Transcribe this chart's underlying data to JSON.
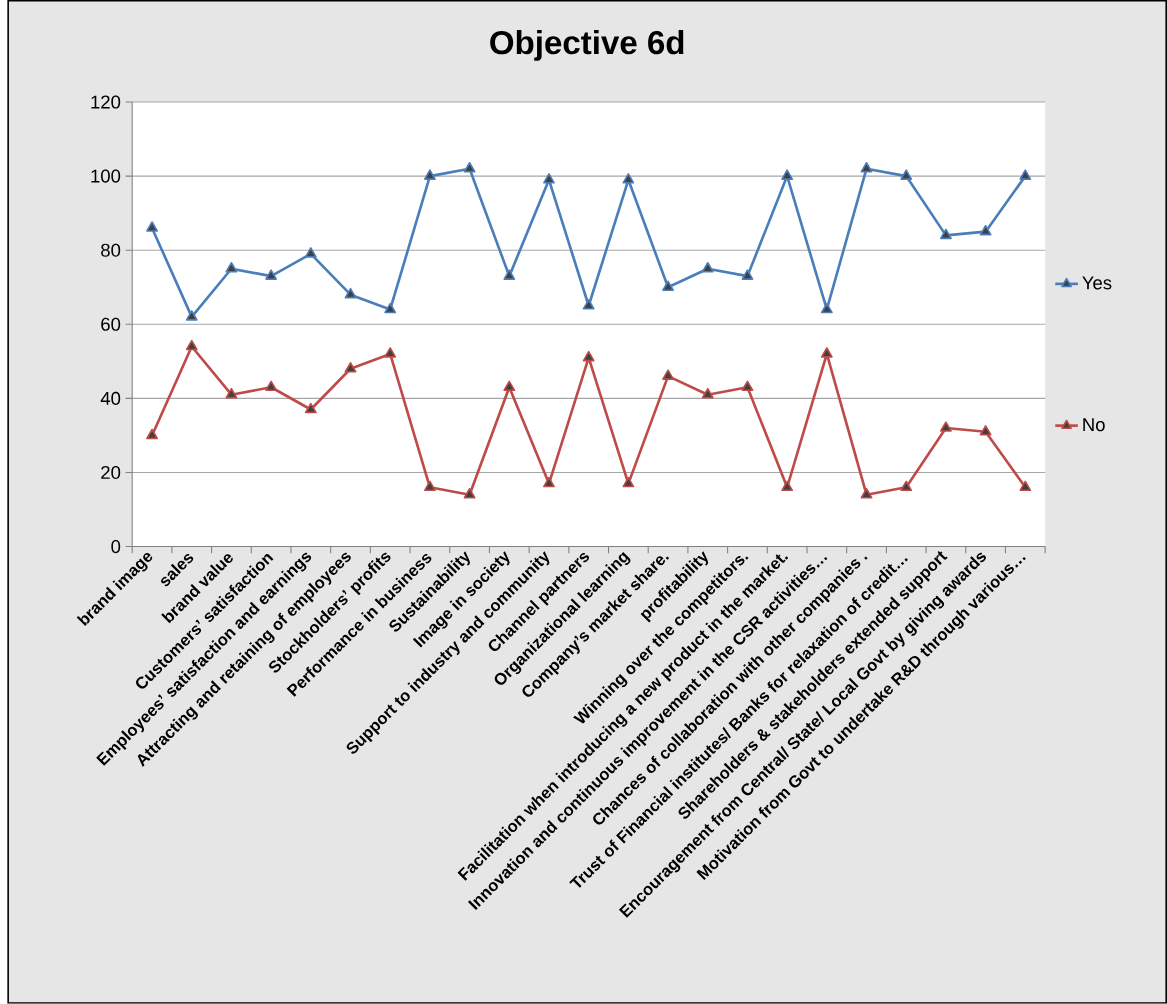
{
  "chart_data": {
    "type": "line",
    "title": "Objective 6d",
    "categories": [
      "brand image",
      "sales",
      "brand value",
      "Customers’ satisfaction",
      "Employees’ satisfaction and earnings",
      "Attracting and retaining of employees",
      "Stockholders’ profits",
      "Performance in business",
      "Sustainability",
      "Image in society",
      "Support to industry and community",
      "Channel partners",
      "Organizational learning",
      "Company’s market share.",
      "profitability",
      "Winning over the competitors.",
      "Facilitation when introducing a new product in the market.",
      "Innovation and continuous improvement in the CSR activities…",
      "Chances of collaboration with other companies .",
      "Trust of Financial institutes/ Banks for relaxation of   credit…",
      "Shareholders & stakeholders extended support",
      "Encouragement from Central/ State/ Local Govt by giving awards",
      "Motivation from Govt to undertake R&D through various…"
    ],
    "series": [
      {
        "name": "Yes",
        "color": "#4a7ebb",
        "values": [
          86,
          62,
          75,
          73,
          79,
          68,
          64,
          100,
          102,
          73,
          99,
          65,
          99,
          70,
          75,
          73,
          100,
          64,
          102,
          100,
          84,
          85,
          100
        ]
      },
      {
        "name": "No",
        "color": "#be4b48",
        "values": [
          30,
          54,
          41,
          43,
          37,
          48,
          52,
          16,
          14,
          43,
          17,
          51,
          17,
          46,
          41,
          43,
          16,
          52,
          14,
          16,
          32,
          31,
          16
        ]
      }
    ],
    "ylim": [
      0,
      120
    ],
    "yticks": [
      0,
      20,
      40,
      60,
      80,
      100,
      120
    ],
    "grid": "y",
    "legend": "right",
    "marker": "triangle",
    "line_style": "solid"
  }
}
